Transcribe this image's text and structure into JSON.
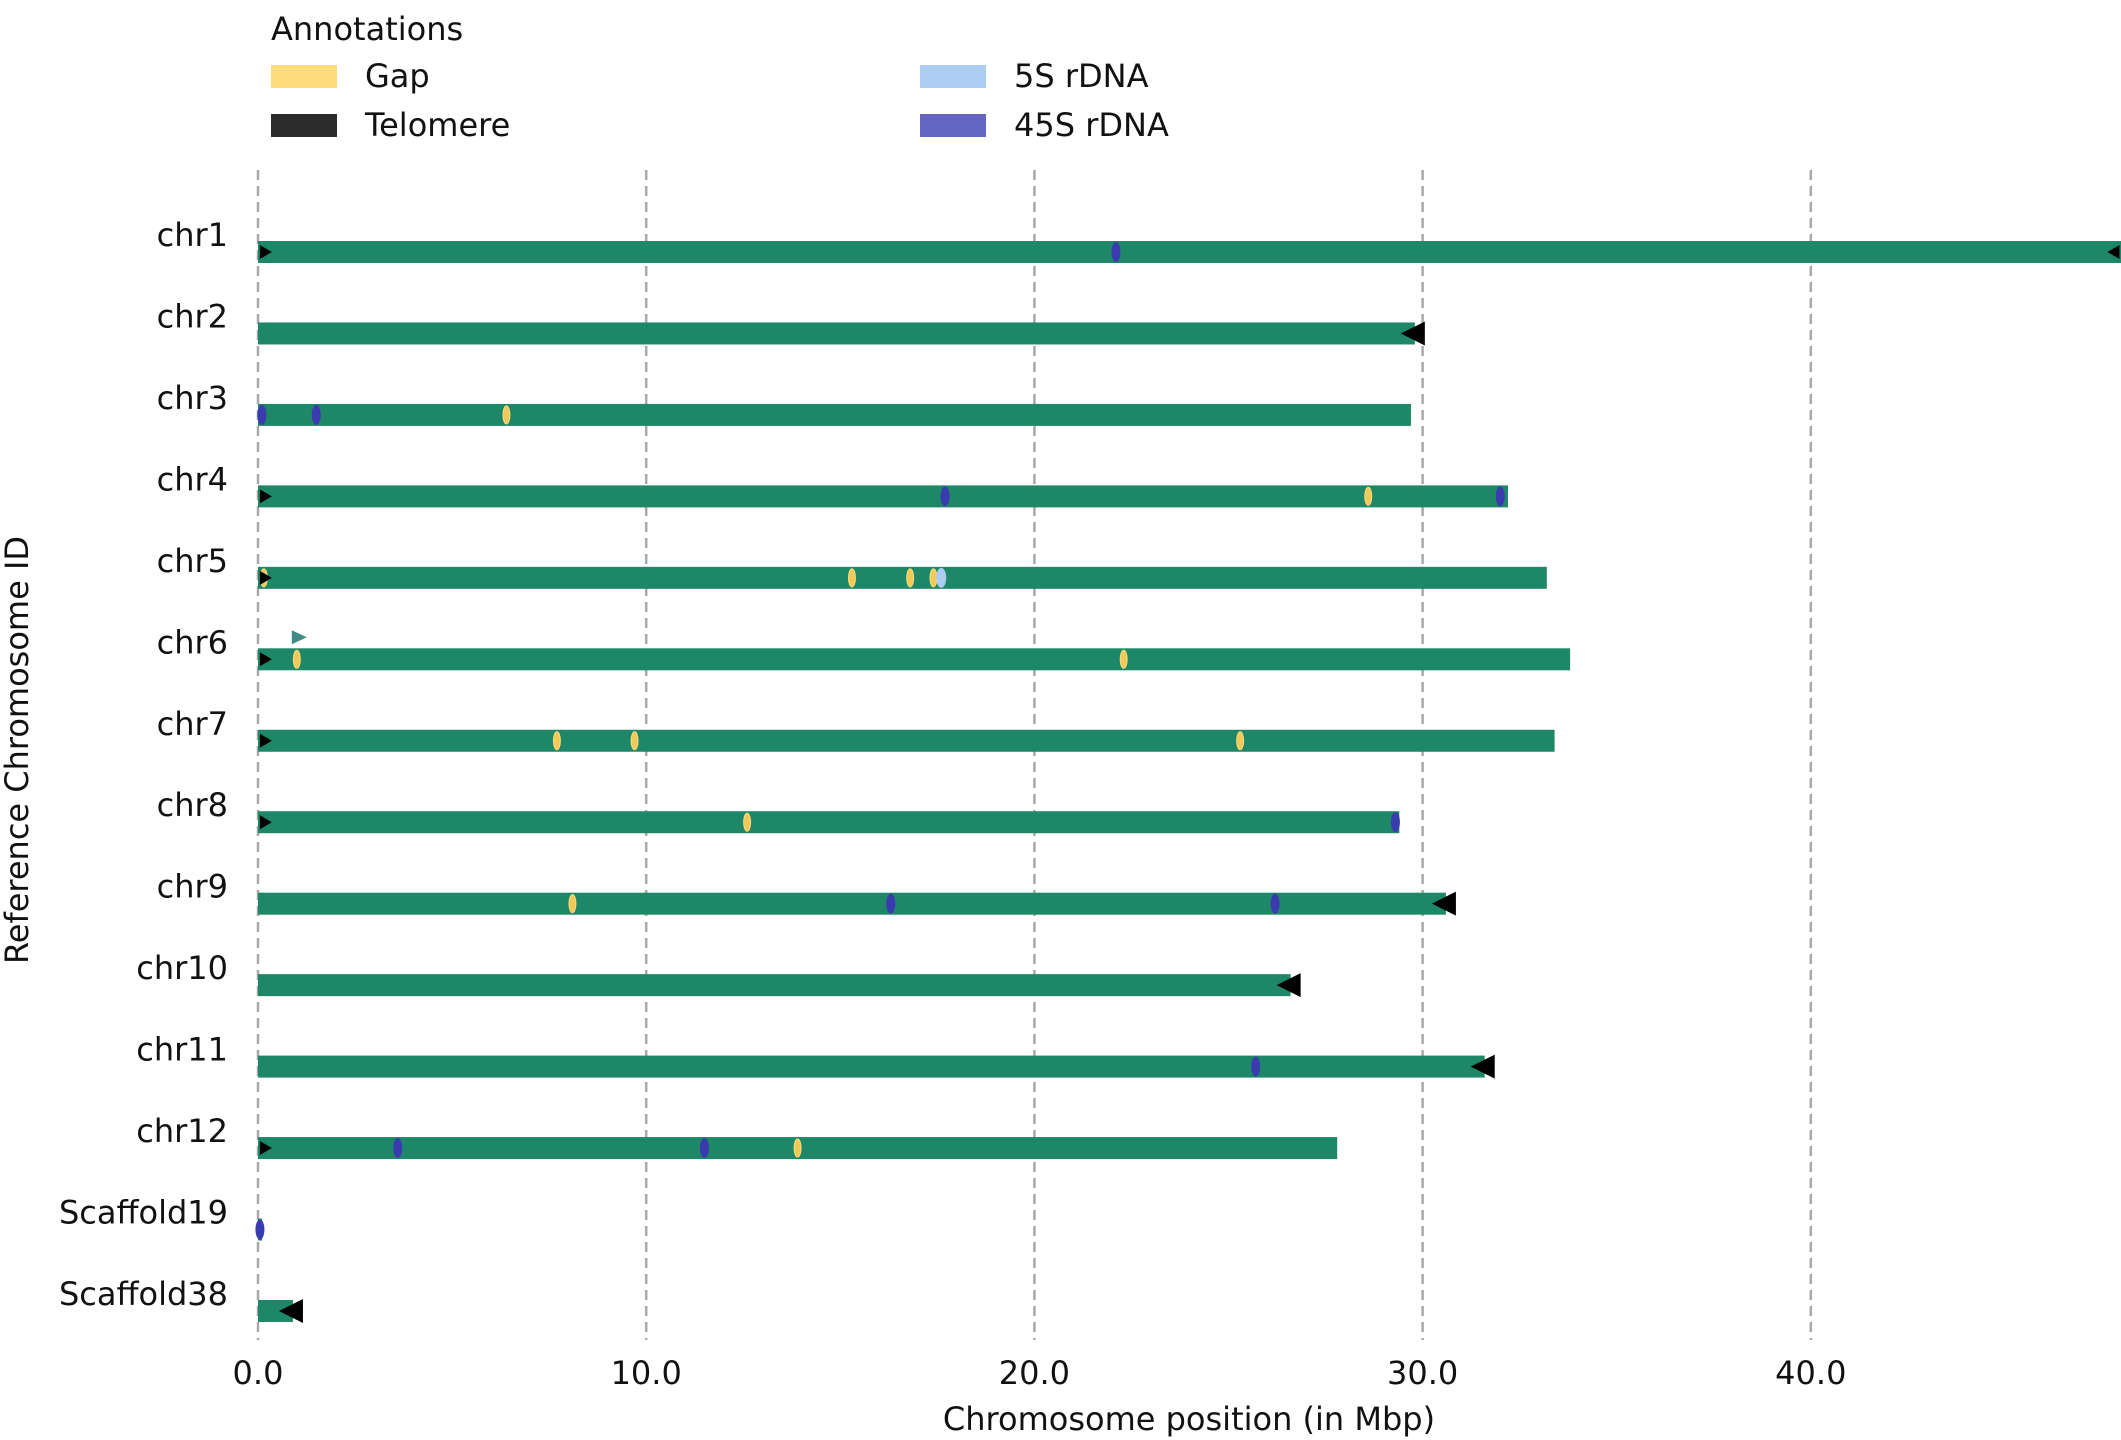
{
  "chart_data": {
    "type": "bar",
    "title": "",
    "xlabel": "Chromosome position (in Mbp)",
    "ylabel": "Reference Chromosome ID",
    "xlim": [
      0,
      48
    ],
    "xticks": [
      0,
      10,
      20,
      30,
      40
    ],
    "xtick_labels": [
      "0.0",
      "10.0",
      "20.0",
      "30.0",
      "40.0"
    ],
    "grid": "vertical-dashed",
    "legend": {
      "title": "Annotations",
      "placement": "top-left",
      "entries": [
        {
          "label": "Gap",
          "color": "#fddc7b"
        },
        {
          "label": "Telomere",
          "color": "#2b2b2b"
        },
        {
          "label": "5S rDNA",
          "color": "#abcdf1"
        },
        {
          "label": "45S rDNA",
          "color": "#6565c4"
        }
      ]
    },
    "bar_color": "#1e8767",
    "categories": [
      "chr1",
      "chr2",
      "chr3",
      "chr4",
      "chr5",
      "chr6",
      "chr7",
      "chr8",
      "chr9",
      "chr10",
      "chr11",
      "chr12",
      "Scaffold19",
      "Scaffold38"
    ],
    "lengths": [
      48.0,
      29.8,
      29.7,
      32.2,
      33.2,
      33.8,
      33.4,
      29.4,
      30.6,
      26.6,
      31.6,
      27.8,
      0.1,
      0.9
    ],
    "telomeres": [
      {
        "chr": "chr1",
        "pos": 0.1,
        "dir": "right",
        "size": "small"
      },
      {
        "chr": "chr1",
        "pos": 47.9,
        "dir": "left",
        "size": "small"
      },
      {
        "chr": "chr2",
        "pos": 29.8,
        "dir": "left",
        "size": "large"
      },
      {
        "chr": "chr4",
        "pos": 0.1,
        "dir": "right",
        "size": "small"
      },
      {
        "chr": "chr5",
        "pos": 0.1,
        "dir": "right",
        "size": "small"
      },
      {
        "chr": "chr6",
        "pos": 0.1,
        "dir": "right",
        "size": "small"
      },
      {
        "chr": "chr7",
        "pos": 0.1,
        "dir": "right",
        "size": "small"
      },
      {
        "chr": "chr8",
        "pos": 0.1,
        "dir": "right",
        "size": "small"
      },
      {
        "chr": "chr9",
        "pos": 30.6,
        "dir": "left",
        "size": "large"
      },
      {
        "chr": "chr10",
        "pos": 26.6,
        "dir": "left",
        "size": "large"
      },
      {
        "chr": "chr11",
        "pos": 31.6,
        "dir": "left",
        "size": "large"
      },
      {
        "chr": "chr12",
        "pos": 0.1,
        "dir": "right",
        "size": "small"
      },
      {
        "chr": "Scaffold38",
        "pos": 0.9,
        "dir": "left",
        "size": "large"
      }
    ],
    "rdna45s": [
      {
        "chr": "chr1",
        "pos": 22.1
      },
      {
        "chr": "chr3",
        "pos": 0.1
      },
      {
        "chr": "chr3",
        "pos": 1.5
      },
      {
        "chr": "chr4",
        "pos": 17.7
      },
      {
        "chr": "chr4",
        "pos": 32.0
      },
      {
        "chr": "chr8",
        "pos": 29.3
      },
      {
        "chr": "chr9",
        "pos": 16.3
      },
      {
        "chr": "chr9",
        "pos": 26.2
      },
      {
        "chr": "chr11",
        "pos": 25.7
      },
      {
        "chr": "chr12",
        "pos": 3.6
      },
      {
        "chr": "chr12",
        "pos": 11.5
      },
      {
        "chr": "Scaffold19",
        "pos": 0.05
      }
    ],
    "rdna5s": [
      {
        "chr": "chr5",
        "pos": 17.6
      }
    ],
    "gaps": [
      {
        "chr": "chr3",
        "pos": 6.4
      },
      {
        "chr": "chr4",
        "pos": 28.6
      },
      {
        "chr": "chr5",
        "pos": 0.15
      },
      {
        "chr": "chr5",
        "pos": 15.3
      },
      {
        "chr": "chr5",
        "pos": 16.8
      },
      {
        "chr": "chr5",
        "pos": 17.4
      },
      {
        "chr": "chr6",
        "pos": 1.0
      },
      {
        "chr": "chr6",
        "pos": 22.3
      },
      {
        "chr": "chr7",
        "pos": 7.7
      },
      {
        "chr": "chr7",
        "pos": 9.7
      },
      {
        "chr": "chr7",
        "pos": 25.3
      },
      {
        "chr": "chr8",
        "pos": 12.6
      },
      {
        "chr": "chr9",
        "pos": 8.1
      },
      {
        "chr": "chr12",
        "pos": 13.9
      }
    ],
    "markers": [
      {
        "chr": "chr6",
        "pos": 1.0,
        "dir": "right",
        "color": "#3f8a85"
      }
    ]
  }
}
